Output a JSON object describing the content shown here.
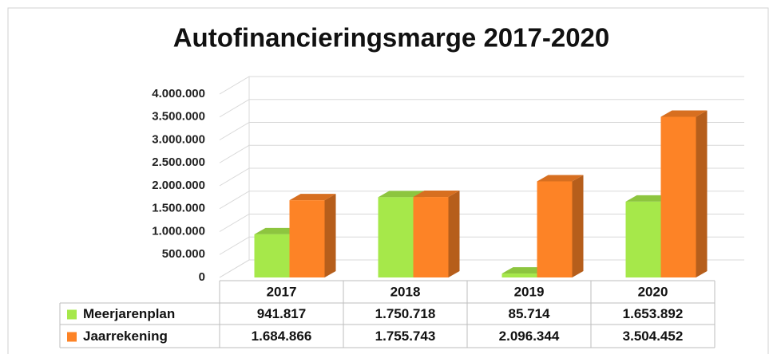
{
  "chart_data": {
    "type": "bar",
    "title": "Autofinancieringsmarge 2017-2020",
    "categories": [
      "2017",
      "2018",
      "2019",
      "2020"
    ],
    "series": [
      {
        "name": "Meerjarenplan",
        "color": "#a6e84a",
        "values": [
          941817,
          1750718,
          85714,
          1653892
        ],
        "value_labels": [
          "941.817",
          "1.750.718",
          "85.714",
          "1.653.892"
        ]
      },
      {
        "name": "Jaarrekening",
        "color": "#fd8326",
        "values": [
          1684866,
          1755743,
          2096344,
          3504452
        ],
        "value_labels": [
          "1.684.866",
          "1.755.743",
          "2.096.344",
          "3.504.452"
        ]
      }
    ],
    "ylim": [
      0,
      4000000
    ],
    "yticks": [
      0,
      {
        "value": 500000,
        "label": "500.000"
      },
      {
        "value": 1000000,
        "label": "1.000.000"
      },
      {
        "value": 1500000,
        "label": "1.500.000"
      },
      {
        "value": 2000000,
        "label": "2.000.000"
      },
      {
        "value": 2500000,
        "label": "2.500.000"
      },
      {
        "value": 3000000,
        "label": "3.000.000"
      },
      {
        "value": 3500000,
        "label": "3.500.000"
      },
      {
        "value": 4000000,
        "label": "4.000.000"
      }
    ],
    "grid": true
  }
}
